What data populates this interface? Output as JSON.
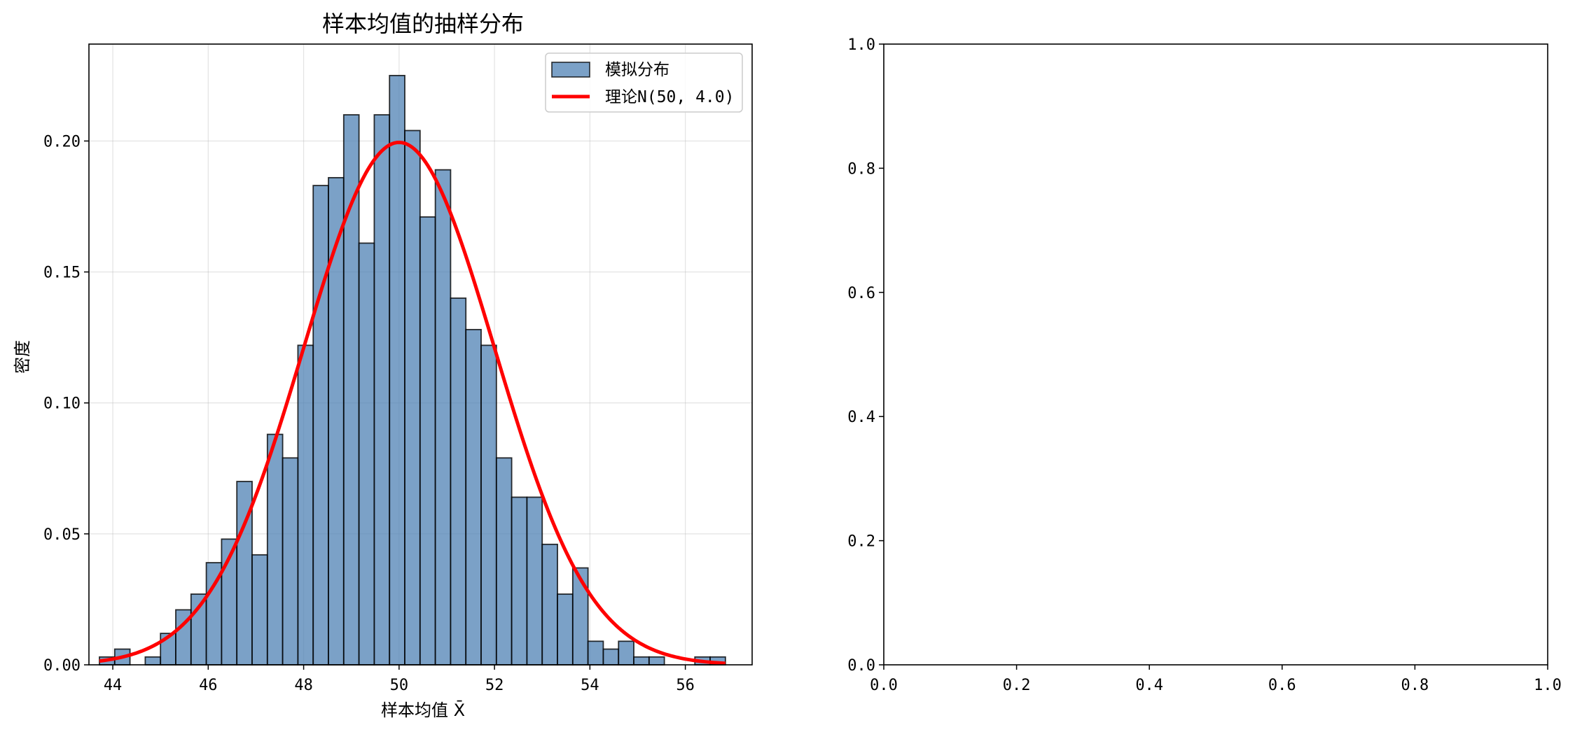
{
  "chart_data": [
    {
      "type": "bar",
      "title": "样本均值的抽样分布",
      "xlabel": "样本均值 X̄",
      "ylabel": "密度",
      "xlim": [
        43.5,
        57.4
      ],
      "ylim": [
        0,
        0.237
      ],
      "xticks": [
        44,
        46,
        48,
        50,
        52,
        54,
        56
      ],
      "yticks": [
        0.0,
        0.05,
        0.1,
        0.15,
        0.2
      ],
      "ytick_labels": [
        "0.00",
        "0.05",
        "0.10",
        "0.15",
        "0.20"
      ],
      "grid": true,
      "legend_position": "top-right",
      "bin_edges": [
        43.72,
        44.04,
        44.36,
        44.68,
        45.0,
        45.32,
        45.64,
        45.96,
        46.28,
        46.6,
        46.92,
        47.24,
        47.56,
        47.88,
        48.2,
        48.52,
        48.84,
        49.16,
        49.48,
        49.8,
        50.12,
        50.44,
        50.76,
        51.08,
        51.4,
        51.72,
        52.04,
        52.36,
        52.68,
        53.0,
        53.32,
        53.64,
        53.96,
        54.28,
        54.6,
        54.92,
        55.24,
        55.56,
        55.88,
        56.2,
        56.52,
        56.84
      ],
      "series": [
        {
          "name": "模拟分布",
          "kind": "histogram",
          "color": "#4f81b4",
          "values": [
            0.003,
            0.006,
            0.0,
            0.003,
            0.012,
            0.021,
            0.027,
            0.039,
            0.048,
            0.07,
            0.042,
            0.088,
            0.079,
            0.122,
            0.183,
            0.186,
            0.21,
            0.161,
            0.21,
            0.225,
            0.204,
            0.171,
            0.189,
            0.14,
            0.128,
            0.122,
            0.079,
            0.064,
            0.064,
            0.046,
            0.027,
            0.037,
            0.009,
            0.006,
            0.009,
            0.003,
            0.003,
            0.0,
            0.0,
            0.003,
            0.003
          ]
        },
        {
          "name": "理论N(50, 4.0)",
          "kind": "line",
          "color": "#ff0000",
          "distribution": "normal",
          "mean": 50,
          "variance": 4.0,
          "x_range": [
            43.72,
            56.84
          ]
        }
      ]
    },
    {
      "type": "empty",
      "xlim": [
        0,
        1
      ],
      "ylim": [
        0,
        1
      ],
      "xticks": [
        0.0,
        0.2,
        0.4,
        0.6,
        0.8,
        1.0
      ],
      "yticks": [
        0.0,
        0.2,
        0.4,
        0.6,
        0.8,
        1.0
      ],
      "xtick_labels": [
        "0.0",
        "0.2",
        "0.4",
        "0.6",
        "0.8",
        "1.0"
      ],
      "ytick_labels": [
        "0.0",
        "0.2",
        "0.4",
        "0.6",
        "0.8",
        "1.0"
      ],
      "grid": false
    }
  ]
}
